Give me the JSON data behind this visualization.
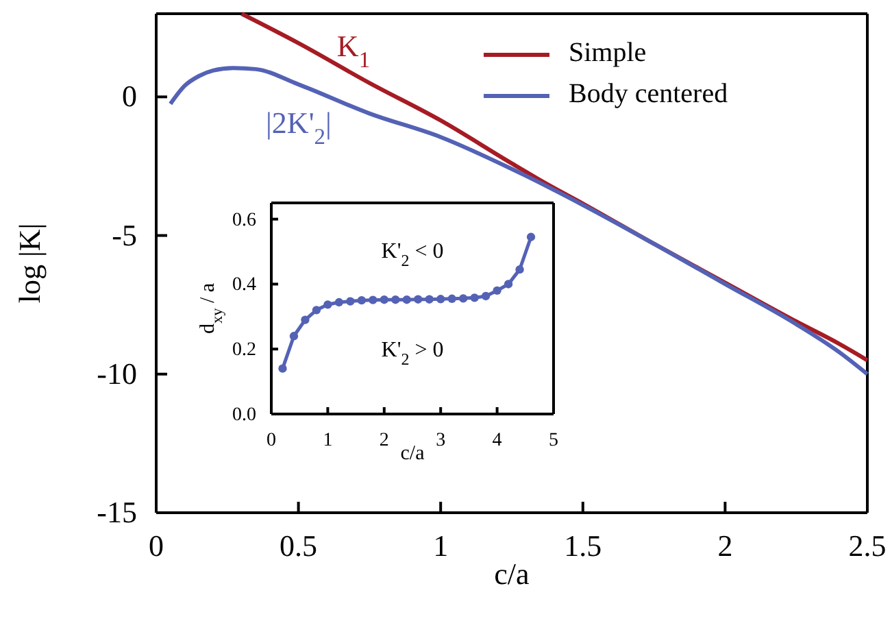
{
  "chart_data": [
    {
      "type": "line",
      "xlabel": "c/a",
      "ylabel": "log |K|",
      "xlim": [
        0,
        2.5
      ],
      "ylim": [
        -15,
        3
      ],
      "xticks": [
        0,
        0.5,
        1,
        1.5,
        2,
        2.5
      ],
      "yticks": [
        -15,
        -10,
        -5,
        0
      ],
      "legend": "top right",
      "marker": "none",
      "line_style": "solid",
      "series": [
        {
          "name": "Simple",
          "color": "#a51c24",
          "x": [
            0.3,
            0.5,
            0.75,
            1.0,
            1.25,
            1.38,
            1.5,
            1.75,
            2.0,
            2.25,
            2.4,
            2.5
          ],
          "values": [
            3,
            1.94,
            0.5,
            -0.85,
            -2.4,
            -3.18,
            -3.85,
            -5.3,
            -6.7,
            -8.1,
            -8.9,
            -9.5
          ]
        },
        {
          "name": "Body centered",
          "color": "#5462b5",
          "x": [
            0.05,
            0.1,
            0.15,
            0.2,
            0.27,
            0.35,
            0.5,
            0.75,
            1.0,
            1.25,
            1.5,
            1.75,
            2.0,
            2.25,
            2.4,
            2.5
          ],
          "values": [
            -0.25,
            0.4,
            0.75,
            0.95,
            1.04,
            1.0,
            0.45,
            -0.6,
            -1.45,
            -2.6,
            -3.9,
            -5.3,
            -6.75,
            -8.2,
            -9.2,
            -10.0
          ]
        }
      ],
      "annotations": [
        "K$_{1}$",
        "|2K'$_{2}$|"
      ]
    },
    {
      "type": "line",
      "xlabel": "c/a",
      "ylabel": "d$_{xy}$ / a",
      "xlim": [
        0,
        5
      ],
      "ylim": [
        0,
        0.65
      ],
      "xticks": [
        0,
        1,
        2,
        3,
        4,
        5
      ],
      "yticks": [
        {
          "value": 0,
          "label": "0.0"
        },
        0.2,
        0.4,
        0.6
      ],
      "marker": "circle",
      "line_style": "solid",
      "series": [
        {
          "color": "#5462b5",
          "x": [
            0.2,
            0.4,
            0.6,
            0.8,
            1.0,
            1.2,
            1.4,
            1.6,
            1.8,
            2.0,
            2.2,
            2.4,
            2.6,
            2.8,
            3.0,
            3.2,
            3.4,
            3.6,
            3.8,
            4.0,
            4.2,
            4.4,
            4.6
          ],
          "values": [
            0.14,
            0.24,
            0.29,
            0.32,
            0.337,
            0.344,
            0.347,
            0.35,
            0.351,
            0.352,
            0.352,
            0.352,
            0.353,
            0.353,
            0.354,
            0.355,
            0.356,
            0.358,
            0.363,
            0.38,
            0.4,
            0.445,
            0.545
          ]
        }
      ],
      "annotations": [
        "K'$_{2}$ < 0",
        "K'$_{2}$ > 0"
      ]
    }
  ]
}
